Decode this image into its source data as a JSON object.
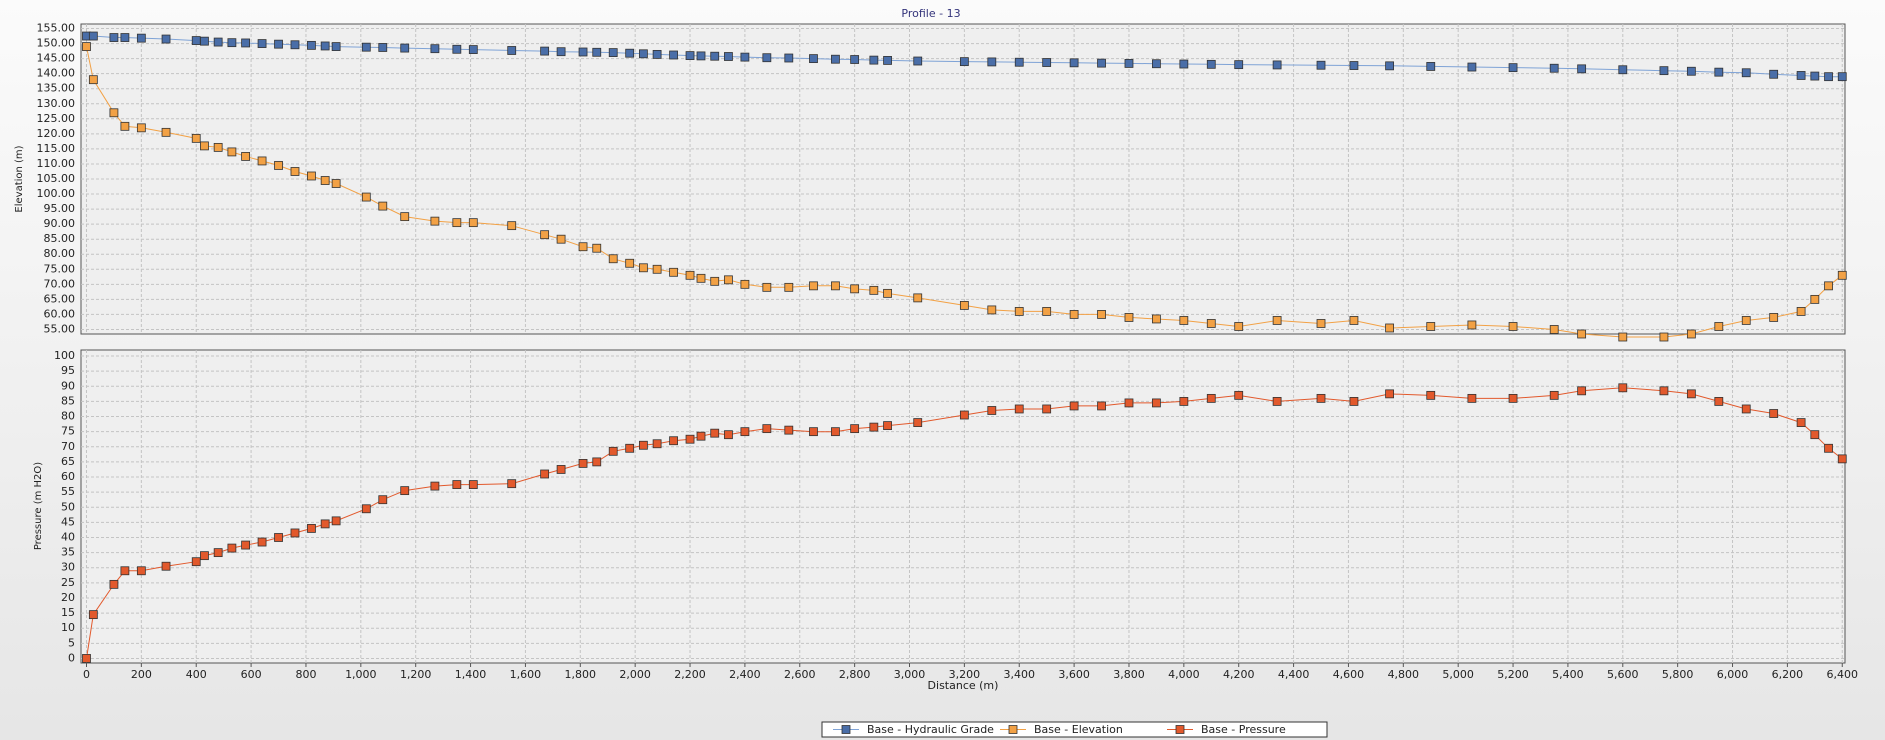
{
  "chart_data": [
    {
      "type": "line",
      "title": "Profile - 13",
      "ylabel": "Elevation (m)",
      "x": [
        0,
        25,
        100,
        140,
        200,
        290,
        400,
        430,
        480,
        530,
        580,
        640,
        700,
        760,
        820,
        870,
        910,
        1020,
        1080,
        1160,
        1270,
        1350,
        1410,
        1550,
        1670,
        1730,
        1810,
        1860,
        1920,
        1980,
        2030,
        2080,
        2140,
        2200,
        2240,
        2290,
        2340,
        2400,
        2480,
        2560,
        2650,
        2730,
        2800,
        2870,
        2920,
        3030,
        3200,
        3300,
        3400,
        3500,
        3600,
        3700,
        3800,
        3900,
        4000,
        4100,
        4200,
        4340,
        4500,
        4620,
        4750,
        4900,
        5050,
        5200,
        5350,
        5450,
        5600,
        5750,
        5850,
        5950,
        6050,
        6150,
        6250,
        6300,
        6350,
        6400
      ],
      "xlim": [
        -20,
        6410
      ],
      "ylim": [
        53.5,
        156.5
      ],
      "yticks": [
        {
          "value": 55,
          "label": "55.00"
        },
        {
          "value": 60,
          "label": "60.00"
        },
        {
          "value": 65,
          "label": "65.00"
        },
        {
          "value": 70,
          "label": "70.00"
        },
        {
          "value": 75,
          "label": "75.00"
        },
        {
          "value": 80,
          "label": "80.00"
        },
        {
          "value": 85,
          "label": "85.00"
        },
        {
          "value": 90,
          "label": "90.00"
        },
        {
          "value": 95,
          "label": "95.00"
        },
        {
          "value": 100,
          "label": "100.00"
        },
        {
          "value": 105,
          "label": "105.00"
        },
        {
          "value": 110,
          "label": "110.00"
        },
        {
          "value": 115,
          "label": "115.00"
        },
        {
          "value": 120,
          "label": "120.00"
        },
        {
          "value": 125,
          "label": "125.00"
        },
        {
          "value": 130,
          "label": "130.00"
        },
        {
          "value": 135,
          "label": "135.00"
        },
        {
          "value": 140,
          "label": "140.00"
        },
        {
          "value": 145,
          "label": "145.00"
        },
        {
          "value": 150,
          "label": "150.00"
        },
        {
          "value": 155,
          "label": "155.00"
        }
      ],
      "grid": true,
      "series": [
        {
          "name": "Base - Hydraulic Grade",
          "color": "#4a6ea8",
          "line_color": "#7fa3d6",
          "values": [
            152.5,
            152.5,
            152,
            152,
            151.8,
            151.5,
            151,
            150.8,
            150.5,
            150.3,
            150.2,
            150,
            149.8,
            149.6,
            149.4,
            149.2,
            149,
            148.8,
            148.7,
            148.5,
            148.3,
            148.1,
            148,
            147.7,
            147.5,
            147.3,
            147.2,
            147.1,
            147,
            146.8,
            146.6,
            146.4,
            146.2,
            146,
            145.9,
            145.8,
            145.7,
            145.5,
            145.3,
            145.2,
            145,
            144.8,
            144.7,
            144.5,
            144.4,
            144.2,
            144,
            143.9,
            143.8,
            143.7,
            143.6,
            143.5,
            143.4,
            143.3,
            143.2,
            143.1,
            143,
            142.9,
            142.8,
            142.7,
            142.6,
            142.4,
            142.2,
            142,
            141.8,
            141.6,
            141.3,
            141,
            140.8,
            140.5,
            140.3,
            139.8,
            139.4,
            139.2,
            139,
            139
          ]
        },
        {
          "name": "Base - Elevation",
          "color": "#f2a145",
          "line_color": "#f2a145",
          "values": [
            149,
            138,
            127,
            122.5,
            122,
            120.5,
            118.5,
            116,
            115.5,
            114,
            112.5,
            111,
            109.5,
            107.5,
            106,
            104.5,
            103.5,
            99,
            96,
            92.5,
            91,
            90.5,
            90.5,
            89.5,
            86.5,
            85,
            82.5,
            82,
            78.5,
            77,
            75.5,
            75,
            74,
            73,
            72,
            71,
            71.5,
            70,
            69,
            69,
            69.5,
            69.5,
            68.5,
            68,
            67,
            65.5,
            63,
            61.5,
            61,
            61,
            60,
            60,
            59,
            58.5,
            58,
            57,
            56,
            58,
            57,
            58,
            55.5,
            56,
            56.5,
            56,
            55,
            53.5,
            52.5,
            52.5,
            53.5,
            56,
            58,
            59,
            61,
            65,
            69.5,
            73
          ]
        }
      ]
    },
    {
      "type": "line",
      "ylabel": "Pressure (m H2O)",
      "xlabel": "Distance (m)",
      "x": [
        0,
        25,
        100,
        140,
        200,
        290,
        400,
        430,
        480,
        530,
        580,
        640,
        700,
        760,
        820,
        870,
        910,
        1020,
        1080,
        1160,
        1270,
        1350,
        1410,
        1550,
        1670,
        1730,
        1810,
        1860,
        1920,
        1980,
        2030,
        2080,
        2140,
        2200,
        2240,
        2290,
        2340,
        2400,
        2480,
        2560,
        2650,
        2730,
        2800,
        2870,
        2920,
        3030,
        3200,
        3300,
        3400,
        3500,
        3600,
        3700,
        3800,
        3900,
        4000,
        4100,
        4200,
        4340,
        4500,
        4620,
        4750,
        4900,
        5050,
        5200,
        5350,
        5450,
        5600,
        5750,
        5850,
        5950,
        6050,
        6150,
        6250,
        6300,
        6350,
        6400
      ],
      "xlim": [
        -20,
        6410
      ],
      "xticks": [
        0,
        200,
        400,
        600,
        800,
        {
          "value": 1000,
          "label": "1,000"
        },
        {
          "value": 1200,
          "label": "1,200"
        },
        {
          "value": 1400,
          "label": "1,400"
        },
        {
          "value": 1600,
          "label": "1,600"
        },
        {
          "value": 1800,
          "label": "1,800"
        },
        {
          "value": 2000,
          "label": "2,000"
        },
        {
          "value": 2200,
          "label": "2,200"
        },
        {
          "value": 2400,
          "label": "2,400"
        },
        {
          "value": 2600,
          "label": "2,600"
        },
        {
          "value": 2800,
          "label": "2,800"
        },
        {
          "value": 3000,
          "label": "3,000"
        },
        {
          "value": 3200,
          "label": "3,200"
        },
        {
          "value": 3400,
          "label": "3,400"
        },
        {
          "value": 3600,
          "label": "3,600"
        },
        {
          "value": 3800,
          "label": "3,800"
        },
        {
          "value": 4000,
          "label": "4,000"
        },
        {
          "value": 4200,
          "label": "4,200"
        },
        {
          "value": 4400,
          "label": "4,400"
        },
        {
          "value": 4600,
          "label": "4,600"
        },
        {
          "value": 4800,
          "label": "4,800"
        },
        {
          "value": 5000,
          "label": "5,000"
        },
        {
          "value": 5200,
          "label": "5,200"
        },
        {
          "value": 5400,
          "label": "5,400"
        },
        {
          "value": 5600,
          "label": "5,600"
        },
        {
          "value": 5800,
          "label": "5,800"
        },
        {
          "value": 6000,
          "label": "6,000"
        },
        {
          "value": 6200,
          "label": "6,200"
        },
        {
          "value": 6400,
          "label": "6,400"
        }
      ],
      "ylim": [
        -1.5,
        102
      ],
      "yticks": [
        0,
        5,
        10,
        15,
        20,
        25,
        30,
        35,
        40,
        45,
        50,
        55,
        60,
        65,
        70,
        75,
        80,
        85,
        90,
        95,
        100
      ],
      "grid": true,
      "series": [
        {
          "name": "Base - Pressure",
          "color": "#e2592c",
          "line_color": "#e2592c",
          "values": [
            0,
            14.5,
            24.5,
            29,
            29,
            30.5,
            32,
            34,
            35,
            36.5,
            37.5,
            38.5,
            40,
            41.5,
            43,
            44.5,
            45.5,
            49.5,
            52.5,
            55.5,
            57,
            57.5,
            57.5,
            57.8,
            61,
            62.5,
            64.5,
            65,
            68.5,
            69.5,
            70.5,
            71,
            72,
            72.5,
            73.5,
            74.5,
            74,
            75,
            76,
            75.5,
            75,
            75,
            76,
            76.5,
            77,
            78,
            80.5,
            82,
            82.5,
            82.5,
            83.5,
            83.5,
            84.5,
            84.5,
            85,
            86,
            87,
            85,
            86,
            85,
            87.5,
            87,
            86,
            86,
            87,
            88.5,
            89.5,
            88.5,
            87.5,
            85,
            82.5,
            81,
            78,
            74,
            69.5,
            66
          ]
        }
      ]
    }
  ]
}
